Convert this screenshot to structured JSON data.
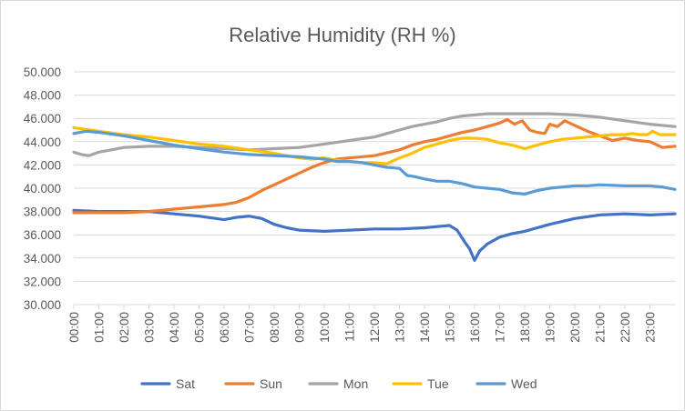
{
  "chart_data": {
    "type": "line",
    "title": "Relative Humidity (RH %)",
    "xlabel": "",
    "ylabel": "",
    "ylim": [
      30,
      50
    ],
    "yticks": [
      "30.000",
      "32.000",
      "34.000",
      "36.000",
      "38.000",
      "40.000",
      "42.000",
      "44.000",
      "46.000",
      "48.000",
      "50.000"
    ],
    "xticks": [
      "00:00",
      "01:00",
      "02:00",
      "03:00",
      "04:00",
      "05:00",
      "06:00",
      "07:00",
      "08:00",
      "09:00",
      "10:00",
      "11:00",
      "12:00",
      "13:00",
      "14:00",
      "15:00",
      "16:00",
      "17:00",
      "18:00",
      "19:00",
      "20:00",
      "21:00",
      "22:00",
      "23:00"
    ],
    "grid": true,
    "legend": "bottom",
    "x_range_hours": [
      0,
      24
    ],
    "series": [
      {
        "name": "Sat",
        "color": "#4472c4",
        "x": [
          0,
          1,
          2,
          3,
          4,
          5,
          6,
          6.5,
          7,
          7.5,
          8,
          8.5,
          9,
          10,
          11,
          12,
          13,
          14,
          14.5,
          15,
          15.3,
          15.6,
          15.8,
          16,
          16.2,
          16.5,
          17,
          17.5,
          18,
          18.5,
          19,
          20,
          21,
          22,
          23,
          24
        ],
        "values": [
          38.1,
          38.0,
          38.0,
          38.0,
          37.8,
          37.6,
          37.3,
          37.5,
          37.6,
          37.4,
          36.9,
          36.6,
          36.4,
          36.3,
          36.4,
          36.5,
          36.5,
          36.6,
          36.7,
          36.8,
          36.4,
          35.4,
          34.8,
          33.8,
          34.6,
          35.2,
          35.8,
          36.1,
          36.3,
          36.6,
          36.9,
          37.4,
          37.7,
          37.8,
          37.7,
          37.8
        ]
      },
      {
        "name": "Sun",
        "color": "#ed7d31",
        "x": [
          0,
          1,
          2,
          3,
          4,
          5,
          6,
          6.5,
          7,
          7.5,
          8,
          8.5,
          9,
          9.5,
          10,
          10.5,
          11,
          12,
          13,
          13.5,
          14,
          14.5,
          15,
          15.5,
          16,
          16.5,
          17,
          17.3,
          17.6,
          17.9,
          18.2,
          18.5,
          18.8,
          19,
          19.3,
          19.6,
          20,
          20.5,
          21,
          21.5,
          22,
          22.5,
          23,
          23.5,
          24
        ],
        "values": [
          37.9,
          37.9,
          37.9,
          38.0,
          38.2,
          38.4,
          38.6,
          38.8,
          39.2,
          39.8,
          40.3,
          40.8,
          41.3,
          41.8,
          42.2,
          42.5,
          42.6,
          42.8,
          43.3,
          43.7,
          44.0,
          44.2,
          44.5,
          44.8,
          45.0,
          45.3,
          45.6,
          45.9,
          45.5,
          45.8,
          45.0,
          44.8,
          44.7,
          45.5,
          45.3,
          45.8,
          45.4,
          44.9,
          44.5,
          44.1,
          44.3,
          44.1,
          44.0,
          43.5,
          43.6
        ]
      },
      {
        "name": "Mon",
        "color": "#a5a5a5",
        "x": [
          0,
          0.3,
          0.6,
          1,
          1.5,
          2,
          3,
          4,
          5,
          6,
          7,
          8,
          9,
          10,
          11,
          12,
          12.5,
          13,
          13.5,
          14,
          14.5,
          15,
          15.5,
          16,
          16.5,
          17,
          18,
          19,
          20,
          21,
          22,
          23,
          24
        ],
        "values": [
          43.1,
          42.9,
          42.8,
          43.1,
          43.3,
          43.5,
          43.6,
          43.6,
          43.5,
          43.4,
          43.3,
          43.4,
          43.5,
          43.8,
          44.1,
          44.4,
          44.7,
          45.0,
          45.3,
          45.5,
          45.7,
          46.0,
          46.2,
          46.3,
          46.4,
          46.4,
          46.4,
          46.4,
          46.3,
          46.1,
          45.8,
          45.5,
          45.3
        ]
      },
      {
        "name": "Tue",
        "color": "#ffc000",
        "x": [
          0,
          1,
          2,
          3,
          4,
          5,
          6,
          7,
          8,
          8.5,
          9,
          9.5,
          10,
          10.5,
          11,
          11.5,
          12,
          12.5,
          13,
          13.5,
          14,
          14.5,
          15,
          15.5,
          16,
          16.5,
          17,
          17.5,
          18,
          18.5,
          19,
          19.5,
          20,
          20.5,
          21,
          21.5,
          22,
          22.3,
          22.6,
          22.9,
          23.1,
          23.4,
          24
        ],
        "values": [
          45.2,
          44.9,
          44.6,
          44.4,
          44.1,
          43.8,
          43.6,
          43.3,
          43.0,
          42.8,
          42.6,
          42.5,
          42.6,
          42.4,
          42.3,
          42.2,
          42.2,
          42.1,
          42.6,
          43.0,
          43.5,
          43.8,
          44.1,
          44.3,
          44.3,
          44.2,
          43.9,
          43.7,
          43.4,
          43.7,
          44.0,
          44.2,
          44.3,
          44.4,
          44.5,
          44.6,
          44.6,
          44.7,
          44.6,
          44.6,
          44.9,
          44.6,
          44.6
        ]
      },
      {
        "name": "Wed",
        "color": "#5b9bd5",
        "x": [
          0,
          0.5,
          1,
          2,
          3,
          4,
          5,
          6,
          7,
          8,
          9,
          9.5,
          10,
          10.5,
          11,
          11.5,
          12,
          12.5,
          13,
          13.3,
          13.6,
          14,
          14.5,
          15,
          15.5,
          16,
          16.5,
          17,
          17.5,
          18,
          18.5,
          19,
          19.5,
          20,
          20.5,
          21,
          22,
          23,
          23.5,
          24
        ],
        "values": [
          44.7,
          44.9,
          44.8,
          44.5,
          44.1,
          43.7,
          43.4,
          43.1,
          42.9,
          42.8,
          42.7,
          42.6,
          42.5,
          42.3,
          42.3,
          42.2,
          42.0,
          41.8,
          41.7,
          41.1,
          41.0,
          40.8,
          40.6,
          40.6,
          40.4,
          40.1,
          40.0,
          39.9,
          39.6,
          39.5,
          39.8,
          40.0,
          40.1,
          40.2,
          40.2,
          40.3,
          40.2,
          40.2,
          40.1,
          39.9
        ]
      }
    ]
  }
}
